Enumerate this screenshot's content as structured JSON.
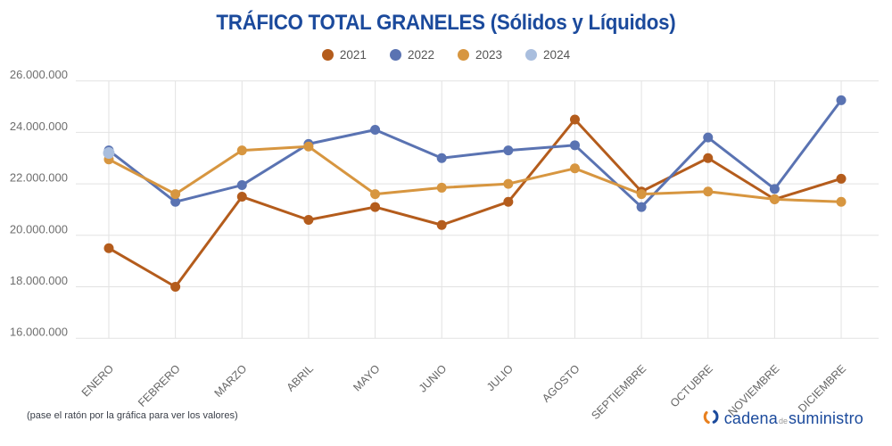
{
  "title": "TRÁFICO TOTAL GRANELES (Sólidos y Líquidos)",
  "legend": [
    {
      "label": "2021",
      "color": "#b45c1c"
    },
    {
      "label": "2022",
      "color": "#5a73b2"
    },
    {
      "label": "2023",
      "color": "#d79640"
    },
    {
      "label": "2024",
      "color": "#a9bede"
    }
  ],
  "footer": {
    "note": "(pase el ratón por la gráfica para ver los valores)"
  },
  "logo": {
    "word1": "cadena",
    "word2": "de",
    "word3": "suministro",
    "blue": "#1b4a9c",
    "orange": "#e8801f"
  },
  "chart_data": {
    "type": "line",
    "title": "TRÁFICO TOTAL GRANELES (Sólidos y Líquidos)",
    "categories": [
      "ENERO",
      "FEBRERO",
      "MARZO",
      "ABRIL",
      "MAYO",
      "JUNIO",
      "JULIO",
      "AGOSTO",
      "SEPTIEMBRE",
      "OCTUBRE",
      "NOVIEMBRE",
      "DICIEMBRE"
    ],
    "ylim": [
      16000000,
      26000000
    ],
    "ytick_step": 2000000,
    "ytick_labels": [
      "26.000.000",
      "24.000.000",
      "22.000.000",
      "20.000.000",
      "18.000.000",
      "16.000.000"
    ],
    "grid": true,
    "legend_position": "top",
    "series": [
      {
        "name": "2021",
        "color": "#b45c1c",
        "values": [
          19500000,
          18000000,
          21500000,
          20600000,
          21100000,
          20400000,
          21300000,
          24500000,
          21700000,
          23000000,
          21400000,
          22200000
        ]
      },
      {
        "name": "2022",
        "color": "#5a73b2",
        "values": [
          23300000,
          21300000,
          21950000,
          23550000,
          24100000,
          23000000,
          23300000,
          23500000,
          21100000,
          23800000,
          21800000,
          25250000
        ]
      },
      {
        "name": "2023",
        "color": "#d79640",
        "values": [
          22950000,
          21600000,
          23300000,
          23450000,
          21600000,
          21850000,
          22000000,
          22600000,
          21600000,
          21700000,
          21400000,
          21300000
        ]
      },
      {
        "name": "2024",
        "color": "#a9bede",
        "values": [
          23200000,
          null,
          null,
          null,
          null,
          null,
          null,
          null,
          null,
          null,
          null,
          null
        ]
      }
    ]
  }
}
